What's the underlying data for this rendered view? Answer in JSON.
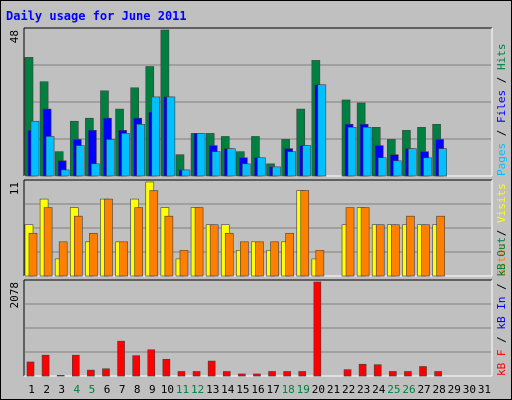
{
  "chart_data": {
    "type": "bar",
    "title": "Daily usage for June 2011",
    "days": [
      "1",
      "2",
      "3",
      "4",
      "5",
      "6",
      "7",
      "8",
      "9",
      "10",
      "11",
      "12",
      "13",
      "14",
      "15",
      "16",
      "17",
      "18",
      "19",
      "20",
      "21",
      "22",
      "23",
      "24",
      "25",
      "26",
      "27",
      "28",
      "29",
      "30",
      "31"
    ],
    "weekend_days": [
      "4",
      "5",
      "11",
      "12",
      "18",
      "19",
      "25",
      "26"
    ],
    "panels": [
      {
        "name": "hits-files-pages",
        "max_label": "48",
        "ymax": 48,
        "right_label": [
          {
            "text": "Pages",
            "color": "#00c0ff"
          },
          {
            "text": " / ",
            "color": "#000000"
          },
          {
            "text": "Files",
            "color": "#0000ff"
          },
          {
            "text": " / ",
            "color": "#000000"
          },
          {
            "text": "Hits",
            "color": "#008040"
          }
        ],
        "series": [
          {
            "name": "Hits",
            "color": "#008040",
            "values": [
              39,
              31,
              8,
              18,
              19,
              28,
              22,
              29,
              36,
              48,
              7,
              14,
              14,
              13,
              8,
              13,
              4,
              12,
              22,
              38,
              null,
              25,
              24,
              16,
              12,
              15,
              16,
              17,
              null,
              null,
              null
            ]
          },
          {
            "name": "Files",
            "color": "#0000ff",
            "values": [
              15,
              22,
              5,
              12,
              15,
              19,
              15,
              19,
              21,
              26,
              2,
              14,
              10,
              9,
              6,
              6,
              3,
              9,
              10,
              30,
              null,
              17,
              17,
              10,
              7,
              9,
              8,
              12,
              null,
              null,
              null
            ]
          },
          {
            "name": "Pages",
            "color": "#00c0ff",
            "values": [
              18,
              13,
              2,
              10,
              4,
              12,
              14,
              17,
              26,
              26,
              2,
              14,
              8,
              9,
              4,
              6,
              3,
              8,
              10,
              30,
              null,
              16,
              16,
              6,
              5,
              9,
              6,
              9,
              null,
              null,
              null
            ]
          }
        ]
      },
      {
        "name": "visits-sites",
        "max_label": "11",
        "ymax": 11,
        "right_label": [
          {
            "text": "Sites",
            "color": "#ff8000"
          },
          {
            "text": " / ",
            "color": "#000000"
          },
          {
            "text": "Visits",
            "color": "#ffff00"
          }
        ],
        "series": [
          {
            "name": "Visits",
            "color": "#ffff00",
            "values": [
              6,
              9,
              2,
              8,
              4,
              9,
              4,
              9,
              11,
              8,
              2,
              8,
              6,
              6,
              3,
              4,
              3,
              4,
              10,
              2,
              null,
              6,
              8,
              6,
              6,
              6,
              6,
              6,
              null,
              null,
              null
            ]
          },
          {
            "name": "Sites",
            "color": "#ff8000",
            "values": [
              5,
              8,
              4,
              7,
              5,
              9,
              4,
              8,
              10,
              7,
              3,
              8,
              6,
              5,
              4,
              4,
              4,
              5,
              10,
              3,
              null,
              8,
              8,
              6,
              6,
              7,
              6,
              7,
              null,
              null,
              null
            ]
          }
        ]
      },
      {
        "name": "kb",
        "max_label": "2078",
        "ymax": 2078,
        "right_label": [
          {
            "text": "kB F",
            "color": "#ff0000"
          },
          {
            "text": " / ",
            "color": "#000000"
          },
          {
            "text": "kB In",
            "color": "#0000ff"
          },
          {
            "text": " / ",
            "color": "#000000"
          },
          {
            "text": "kB Out",
            "color": "#008040"
          }
        ],
        "series": [
          {
            "name": "kB F",
            "color": "#ff0000",
            "values": [
              310,
              460,
              15,
              460,
              130,
              160,
              770,
              450,
              580,
              370,
              100,
              100,
              330,
              100,
              45,
              45,
              100,
              100,
              100,
              2078,
              null,
              140,
              260,
              250,
              100,
              100,
              210,
              100,
              null,
              null,
              null
            ]
          }
        ]
      }
    ]
  }
}
